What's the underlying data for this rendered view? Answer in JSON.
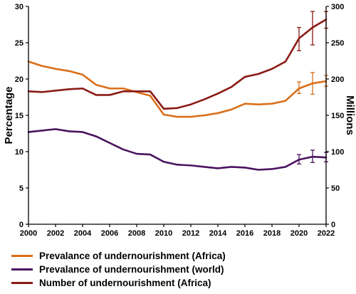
{
  "chart_data": {
    "type": "line",
    "x": [
      2000,
      2001,
      2002,
      2003,
      2004,
      2005,
      2006,
      2007,
      2008,
      2009,
      2010,
      2011,
      2012,
      2013,
      2014,
      2015,
      2016,
      2017,
      2018,
      2019,
      2020,
      2021,
      2022
    ],
    "xlim": [
      2000,
      2022
    ],
    "xticks": [
      "2000",
      "2002",
      "2004",
      "2006",
      "2008",
      "2010",
      "2012",
      "2014",
      "2016",
      "2018",
      "2020",
      "2022"
    ],
    "ylabel_left": "Percentage",
    "ylim_left": [
      0,
      30
    ],
    "yticks_left": [
      "0",
      "5",
      "10",
      "15",
      "20",
      "25",
      "30"
    ],
    "ylabel_right": "Millions",
    "ylim_right": [
      0,
      300
    ],
    "yticks_right": [
      "0",
      "50",
      "100",
      "150",
      "200",
      "250",
      "300"
    ],
    "legend_position": "bottom",
    "grid": false,
    "series": [
      {
        "name": "Prevalance of undernourishment (Africa)",
        "axis": "left",
        "color": "#d96f1a",
        "values": [
          22.4,
          21.8,
          21.4,
          21.1,
          20.6,
          19.2,
          18.7,
          18.7,
          18.2,
          17.7,
          15.1,
          14.8,
          14.8,
          15.0,
          15.3,
          15.8,
          16.6,
          16.5,
          16.6,
          17.0,
          18.7,
          19.4,
          19.7
        ],
        "error_bars": [
          {
            "x": 2020,
            "low": 18.0,
            "high": 19.6
          },
          {
            "x": 2021,
            "low": 17.9,
            "high": 20.9
          },
          {
            "x": 2022,
            "low": 19.0,
            "high": 20.5
          }
        ]
      },
      {
        "name": "Prevalance of undernourishment (world)",
        "axis": "left",
        "color": "#4b1360",
        "values": [
          12.7,
          12.9,
          13.1,
          12.8,
          12.7,
          12.1,
          11.2,
          10.3,
          9.7,
          9.6,
          8.6,
          8.2,
          8.1,
          7.9,
          7.7,
          7.9,
          7.8,
          7.5,
          7.6,
          7.9,
          8.9,
          9.3,
          9.2
        ],
        "error_bars": [
          {
            "x": 2020,
            "low": 8.3,
            "high": 9.6
          },
          {
            "x": 2021,
            "low": 8.5,
            "high": 10.2
          },
          {
            "x": 2022,
            "low": 8.6,
            "high": 9.9
          }
        ]
      },
      {
        "name": "Number of undernourishment (Africa)",
        "axis": "right",
        "color": "#8b1a14",
        "values": [
          183,
          182,
          184,
          186,
          187,
          178,
          178,
          183,
          183,
          183,
          159,
          160,
          165,
          172,
          180,
          189,
          203,
          207,
          214,
          224,
          256,
          271,
          282
        ],
        "error_bars": [
          {
            "x": 2020,
            "low": 239,
            "high": 271
          },
          {
            "x": 2021,
            "low": 247,
            "high": 293
          },
          {
            "x": 2022,
            "low": 270,
            "high": 293
          }
        ]
      }
    ]
  }
}
